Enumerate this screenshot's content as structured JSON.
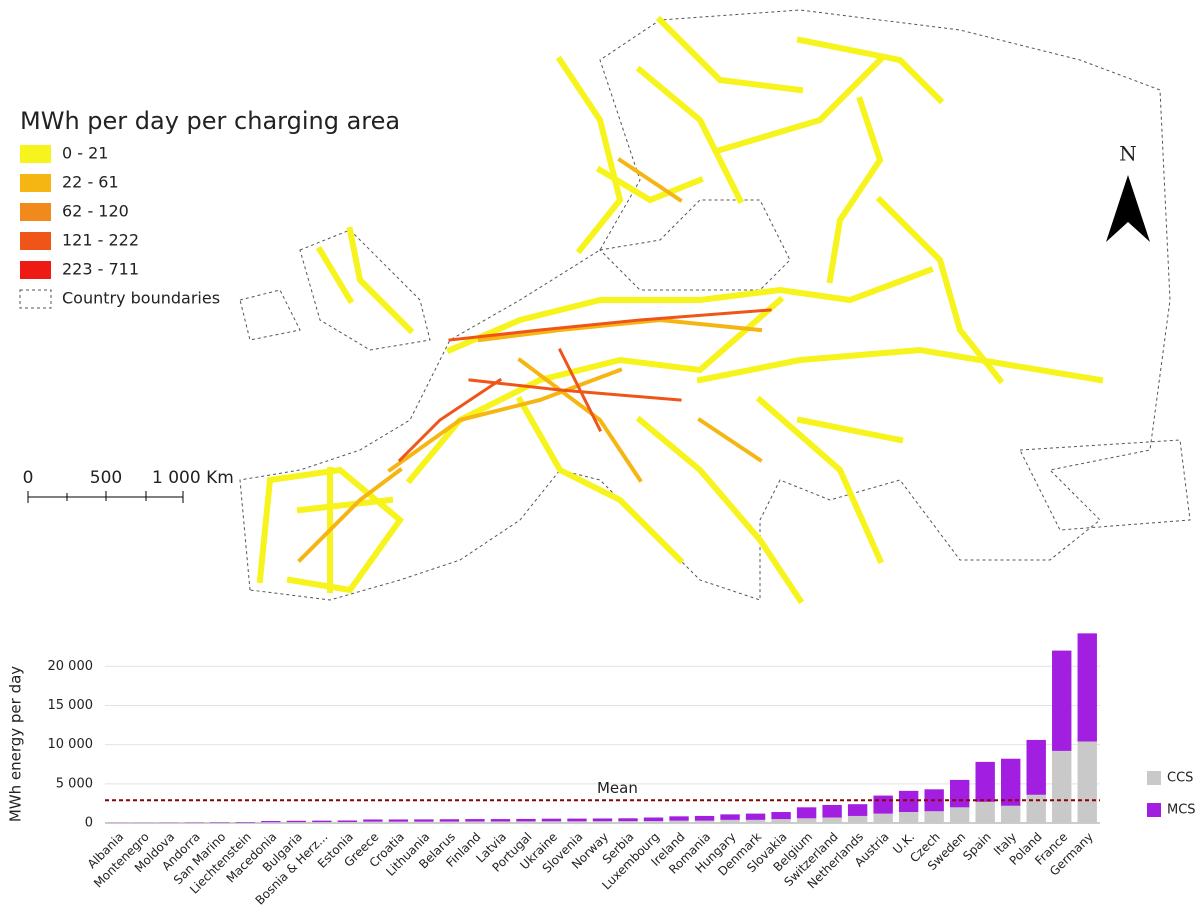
{
  "map": {
    "legend": {
      "title": "MWh per day per charging area",
      "items": [
        {
          "label": "0 - 21",
          "color": "#f7f31c"
        },
        {
          "label": "22 - 61",
          "color": "#f5b614"
        },
        {
          "label": "62 - 120",
          "color": "#f08a1c"
        },
        {
          "label": "121 - 222",
          "color": "#ef5418"
        },
        {
          "label": "223 - 711",
          "color": "#ee1a14"
        }
      ],
      "boundary": "Country boundaries"
    },
    "scale": [
      "0",
      "500",
      "1 000 Km"
    ],
    "north": "N"
  },
  "chart_data": {
    "type": "bar",
    "stacked": true,
    "y_label": "MWh energy per day",
    "categories": [
      "Albania",
      "Montenegro",
      "Moldova",
      "Andorra",
      "San Marino",
      "Liechtenstein",
      "Macedonia",
      "Bulgaria",
      "Bosnia & Herz...",
      "Estonia",
      "Greece",
      "Croatia",
      "Lithuania",
      "Belarus",
      "Finland",
      "Latvia",
      "Portugal",
      "Ukraine",
      "Slovenia",
      "Norway",
      "Serbia",
      "Luxembourg",
      "Ireland",
      "Romania",
      "Hungary",
      "Denmark",
      "Slovakia",
      "Belgium",
      "Switzerland",
      "Netherlands",
      "Austria",
      "U.K.",
      "Czech",
      "Sweden",
      "Spain",
      "Italy",
      "Poland",
      "France",
      "Germany"
    ],
    "series": [
      {
        "name": "CCS",
        "color": "#c9c9c9",
        "values": [
          20,
          25,
          30,
          30,
          40,
          50,
          100,
          110,
          120,
          130,
          180,
          180,
          180,
          190,
          200,
          200,
          210,
          220,
          220,
          230,
          240,
          250,
          300,
          300,
          400,
          400,
          500,
          600,
          700,
          900,
          1200,
          1400,
          1500,
          2000,
          2700,
          2200,
          3600,
          9200,
          10400
        ]
      },
      {
        "name": "MCS",
        "color": "#a21ee0",
        "values": [
          30,
          35,
          40,
          50,
          60,
          70,
          150,
          170,
          180,
          190,
          270,
          270,
          280,
          290,
          300,
          300,
          310,
          330,
          340,
          350,
          360,
          450,
          550,
          600,
          700,
          800,
          900,
          1400,
          1600,
          1500,
          2300,
          2700,
          2800,
          3500,
          5100,
          6000,
          7000,
          12800,
          13800
        ]
      }
    ],
    "mean": {
      "value": 2900,
      "label": "Mean"
    },
    "ylim": [
      0,
      24500
    ],
    "yticks": [
      0,
      {
        "value": 5000,
        "label": "5 000"
      },
      {
        "value": 10000,
        "label": "10 000"
      },
      {
        "value": 15000,
        "label": "15 000"
      },
      {
        "value": 20000,
        "label": "20 000"
      }
    ],
    "grid": true
  }
}
